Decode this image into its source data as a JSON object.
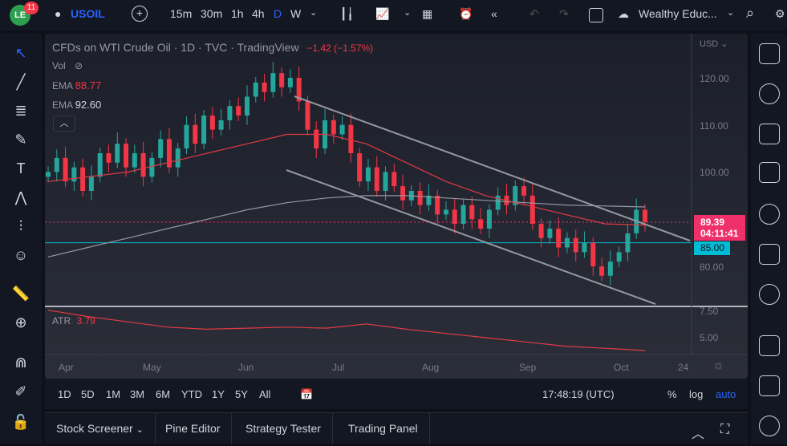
{
  "toolbar": {
    "notifications": "11",
    "symbol": "USOIL",
    "intervals": [
      "15m",
      "30m",
      "1h",
      "4h",
      "D",
      "W"
    ],
    "active_interval": "D",
    "account": "Wealthy Educ..."
  },
  "legend": {
    "title": "CFDs on WTI Crude Oil · 1D · TVC · TradingView",
    "change": "−1.42 (−1.57%)",
    "vol": "Vol",
    "ema1_label": "EMA",
    "ema1_value": "88.77",
    "ema2_label": "EMA",
    "ema2_value": "92.60",
    "atr_label": "ATR",
    "atr_value": "3.79"
  },
  "price_axis": {
    "currency": "USD",
    "ticks": [
      "120.00",
      "110.00",
      "100.00",
      "80.00"
    ],
    "last_price": "89.39",
    "countdown": "04:11:41",
    "hline_price": "85.00",
    "atr_ticks": [
      "7.50",
      "5.00"
    ]
  },
  "time_axis": {
    "labels": [
      "Apr",
      "May",
      "Jun",
      "Jul",
      "Aug",
      "Sep",
      "Oct",
      "24"
    ]
  },
  "range_bar": {
    "ranges": [
      "1D",
      "5D",
      "1M",
      "3M",
      "6M",
      "YTD",
      "1Y",
      "5Y",
      "All"
    ],
    "clock": "17:48:19 (UTC)",
    "pct": "%",
    "log": "log",
    "auto": "auto"
  },
  "footer": {
    "tabs": [
      "Stock Screener",
      "Pine Editor",
      "Strategy Tester",
      "Trading Panel"
    ]
  },
  "colors": {
    "up": "#26a69a",
    "down": "#f23645",
    "ema1": "#e03a45",
    "ema2": "#9598a1",
    "last_price": "#f0306a",
    "hline": "#00bcd4",
    "accent": "#2962ff"
  },
  "chart_data": {
    "type": "candlestick",
    "ylim": [
      80,
      120
    ],
    "closes": [
      100,
      103,
      98,
      101,
      96,
      99,
      104,
      102,
      106,
      101,
      104,
      99,
      103,
      107,
      101,
      105,
      110,
      106,
      112,
      109,
      111,
      114,
      112,
      116,
      119,
      117,
      121,
      118,
      120,
      115,
      109,
      105,
      111,
      108,
      110,
      104,
      98,
      101,
      96,
      100,
      97,
      94,
      96,
      93,
      95,
      91,
      92,
      89,
      93,
      90,
      88,
      92,
      95,
      93,
      97,
      95,
      89,
      86,
      88,
      84,
      86,
      83,
      85,
      80,
      78,
      81,
      83,
      87,
      92,
      89.39
    ],
    "ema_red": [
      98,
      99,
      100,
      102,
      104,
      106,
      108,
      108,
      106,
      102,
      98,
      95,
      93,
      91,
      89,
      88.77
    ],
    "ema_gray": [
      82,
      84,
      86,
      88,
      90,
      92,
      93.5,
      94.5,
      95,
      95,
      94.5,
      94,
      93.5,
      93,
      92.8,
      92.6
    ],
    "atr": [
      7.6,
      7.0,
      6.5,
      6.0,
      5.8,
      5.9,
      6.0,
      5.9,
      6.3,
      5.8,
      5.4,
      5.0,
      4.6,
      4.2,
      4.0,
      3.79
    ]
  }
}
